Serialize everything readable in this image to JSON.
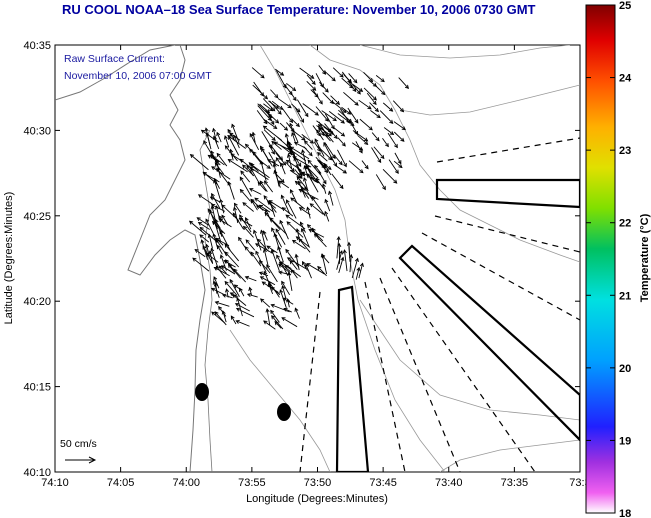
{
  "title": "RU COOL  NOAA–18  Sea Surface Temperature:  November 10, 2006 0730 GMT",
  "annotation": {
    "line1": "Raw Surface Current:",
    "line2": "November 10, 2006 07:00 GMT",
    "scale_label": "50 cm/s"
  },
  "axes": {
    "xlabel": "Longitude (Degrees:Minutes)",
    "ylabel": "Latitude (Degrees:Minutes)",
    "x_ticks": [
      "74:10",
      "74:05",
      "74:00",
      "73:55",
      "73:50",
      "73:45",
      "73:40",
      "73:35",
      "73:3"
    ],
    "y_ticks": [
      "40:35",
      "40:30",
      "40:25",
      "40:20",
      "40:15",
      "40:10"
    ]
  },
  "colorbar": {
    "label": "Temperature (°C)",
    "ticks": [
      "25",
      "24",
      "23",
      "22",
      "21",
      "20",
      "19",
      "18"
    ],
    "min": 18,
    "max": 25
  },
  "colors": {
    "title": "#0000a0",
    "annotation": "#1a1aa0",
    "vectors": "#000000",
    "contours": "#888888"
  }
}
